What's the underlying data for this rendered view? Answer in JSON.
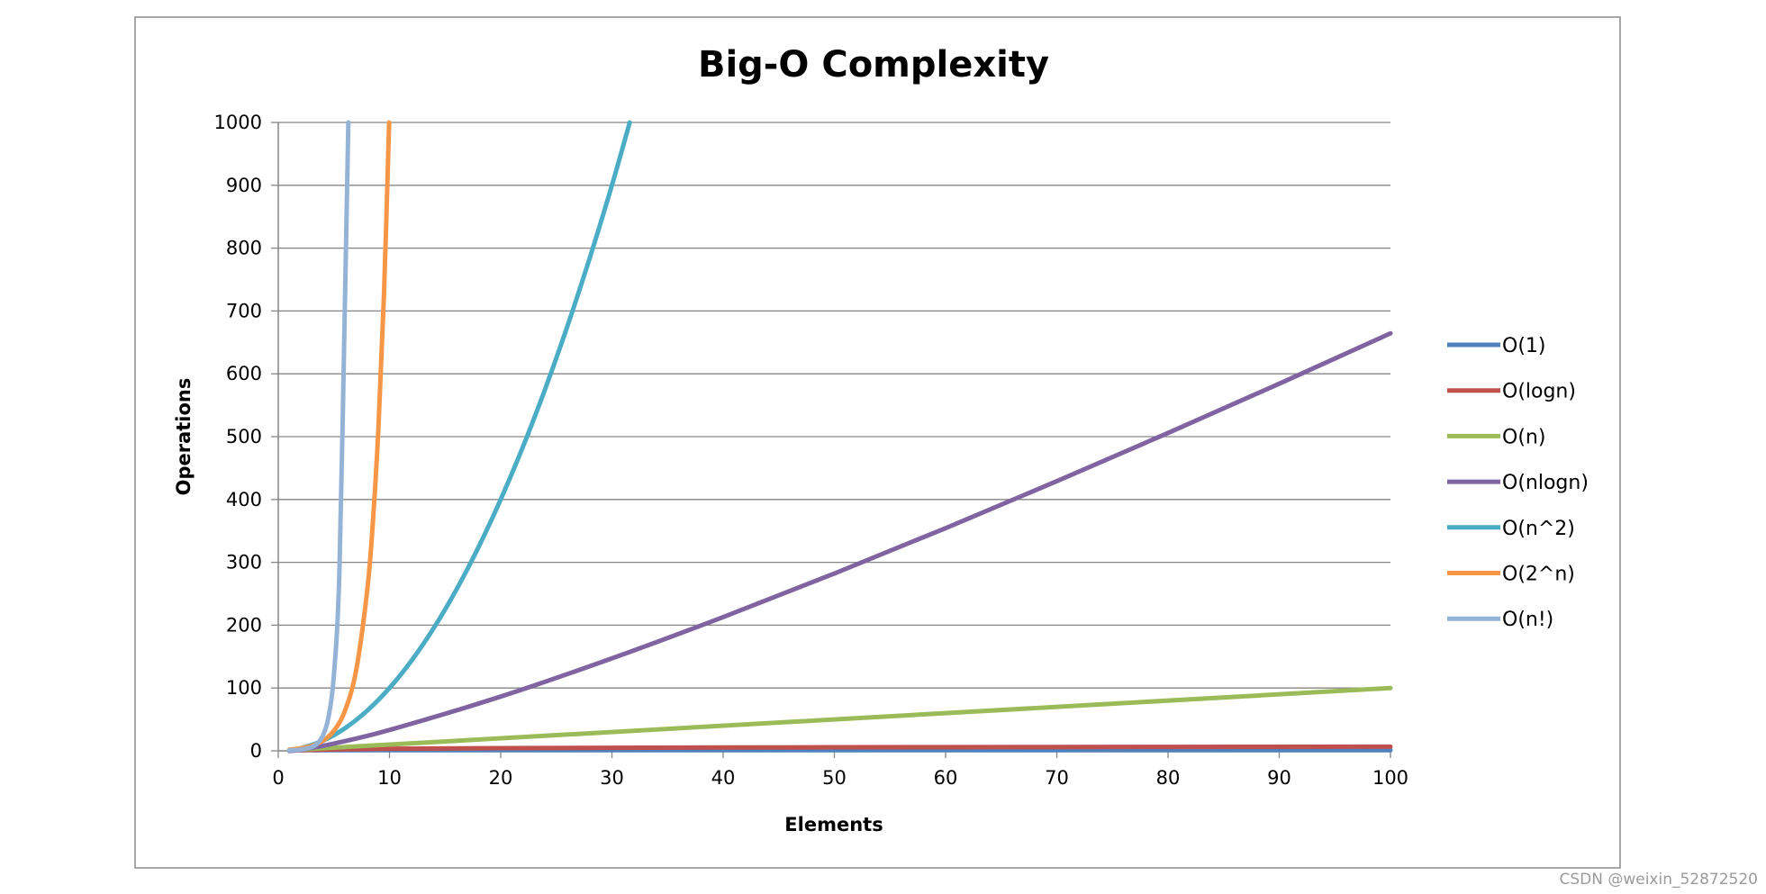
{
  "chart_data": {
    "type": "line",
    "title": "Big-O Complexity",
    "xlabel": "Elements",
    "ylabel": "Operations",
    "xlim": [
      0,
      100
    ],
    "ylim": [
      0,
      1000
    ],
    "x_ticks": [
      "0",
      "10",
      "20",
      "30",
      "40",
      "50",
      "60",
      "70",
      "80",
      "90",
      "100"
    ],
    "y_ticks": [
      "0",
      "100",
      "200",
      "300",
      "400",
      "500",
      "600",
      "700",
      "800",
      "900",
      "1000"
    ],
    "grid": "horizontal",
    "legend_position": "right",
    "series": [
      {
        "name": "O(1)",
        "color": "#4f81bd",
        "x": [
          1,
          100
        ],
        "y": [
          1,
          1
        ]
      },
      {
        "name": "O(logn)",
        "color": "#c0504d",
        "x": [
          1,
          2,
          5,
          10,
          20,
          40,
          60,
          80,
          100
        ],
        "y": [
          0,
          1,
          2.32,
          3.32,
          4.32,
          5.32,
          5.91,
          6.32,
          6.64
        ]
      },
      {
        "name": "O(n)",
        "color": "#9bbb59",
        "x": [
          1,
          100
        ],
        "y": [
          1,
          100
        ]
      },
      {
        "name": "O(nlogn)",
        "color": "#8064a2",
        "x": [
          1,
          2,
          5,
          10,
          20,
          30,
          40,
          50,
          60,
          70,
          80,
          90,
          100
        ],
        "y": [
          0,
          2,
          11.6,
          33.2,
          86.4,
          147.2,
          212.9,
          282.2,
          354.4,
          429.1,
          505.8,
          584.3,
          664.4
        ]
      },
      {
        "name": "O(n^2)",
        "color": "#4bacc6",
        "x": [
          1,
          2,
          4,
          6,
          8,
          10,
          12,
          14,
          16,
          18,
          20,
          22,
          24,
          26,
          28,
          30,
          31.6
        ],
        "y": [
          1,
          4,
          16,
          36,
          64,
          100,
          144,
          196,
          256,
          324,
          400,
          484,
          576,
          676,
          784,
          900,
          1000
        ]
      },
      {
        "name": "O(2^n)",
        "color": "#f79646",
        "x": [
          1,
          2,
          3,
          4,
          5,
          6,
          7,
          8,
          8.5,
          9,
          9.5,
          9.97
        ],
        "y": [
          2,
          4,
          8,
          16,
          32,
          64,
          128,
          256,
          362,
          512,
          724,
          1000
        ]
      },
      {
        "name": "O(n!)",
        "color": "#95b3d7",
        "x": [
          1,
          2,
          3,
          3.5,
          4,
          4.5,
          5,
          5.5,
          6,
          6.3
        ],
        "y": [
          1,
          2,
          6,
          11.6,
          24,
          52.3,
          120,
          287.9,
          720,
          1000
        ]
      }
    ]
  },
  "watermark": "CSDN @weixin_52872520"
}
